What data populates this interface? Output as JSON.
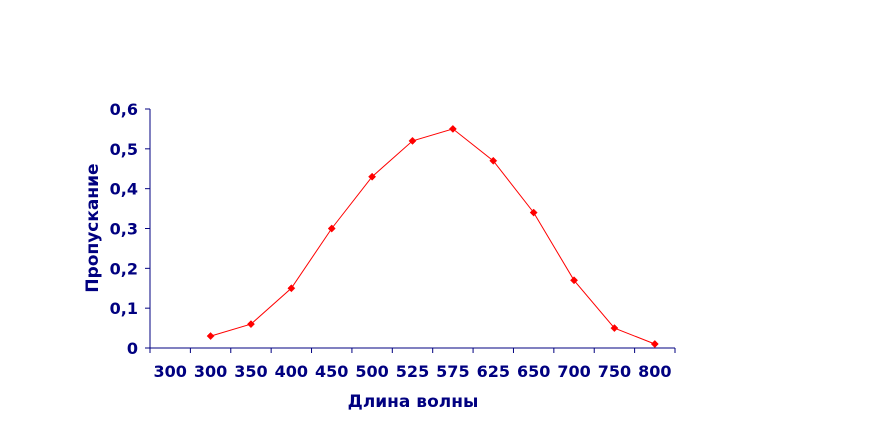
{
  "chart_data": {
    "type": "line",
    "categories": [
      "300",
      "300",
      "350",
      "400",
      "450",
      "500",
      "525",
      "575",
      "625",
      "650",
      "700",
      "750",
      "800"
    ],
    "series": [
      {
        "values": [
          null,
          0.03,
          0.06,
          0.15,
          0.3,
          0.43,
          0.52,
          0.55,
          0.47,
          0.34,
          0.17,
          0.05,
          0.01
        ],
        "color": "#ff0000"
      }
    ],
    "xlabel": "Длина волны",
    "ylabel": "Пропускание",
    "ylim": [
      0,
      0.6
    ],
    "yticks": [
      "0",
      "0,1",
      "0,2",
      "0,3",
      "0,4",
      "0,5",
      "0,6"
    ],
    "grid": false,
    "legend": "none",
    "axis_color": "#000080"
  }
}
